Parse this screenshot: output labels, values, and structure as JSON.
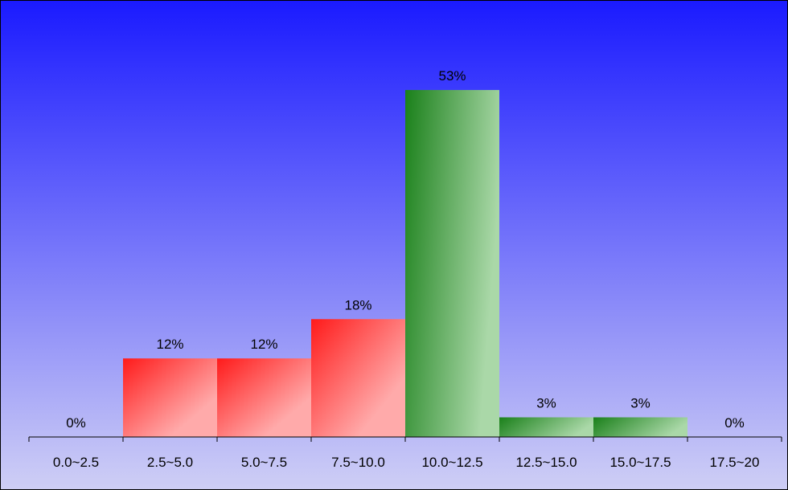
{
  "chart_data": {
    "type": "bar",
    "title": "",
    "xlabel": "",
    "ylabel": "",
    "categories": [
      "0.0~2.5",
      "2.5~5.0",
      "5.0~7.5",
      "7.5~10.0",
      "10.0~12.5",
      "12.5~15.0",
      "15.0~17.5",
      "17.5~20"
    ],
    "values": [
      0,
      12,
      12,
      18,
      53,
      3,
      3,
      0
    ],
    "value_labels": [
      "0%",
      "12%",
      "12%",
      "18%",
      "53%",
      "3%",
      "3%",
      "0%"
    ],
    "bar_colors": [
      "red",
      "red",
      "red",
      "red",
      "green",
      "green",
      "green",
      "green"
    ],
    "ylim": [
      0,
      60
    ],
    "grid": false,
    "legend": "none"
  },
  "colors": {
    "background_top": "#1a1aff",
    "background_bottom": "#cfcff5",
    "red_bar_start": "#ff1a1a",
    "red_bar_end": "#ffaaaa",
    "green_bar_start": "#1a801a",
    "green_bar_end": "#aad8a8",
    "axis": "#000000"
  }
}
